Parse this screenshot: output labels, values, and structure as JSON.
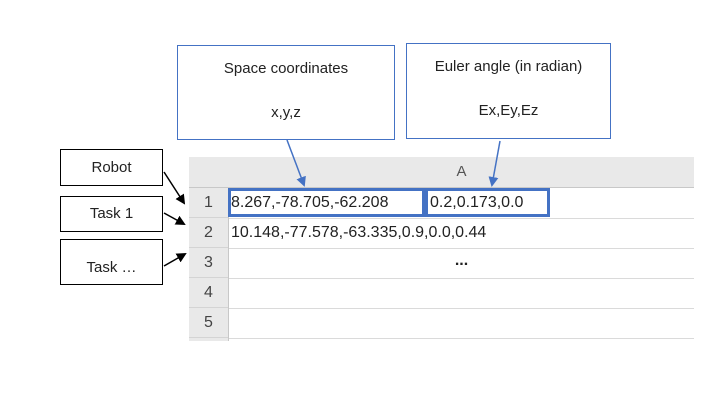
{
  "callouts": {
    "space": {
      "title": "Space coordinates",
      "vars": "x,y,z"
    },
    "euler": {
      "title": "Euler angle (in radian)",
      "vars": "Ex,Ey,Ez"
    }
  },
  "labels": {
    "robot": "Robot",
    "task1": "Task 1",
    "task_more": "Task …"
  },
  "sheet": {
    "column_header": "A",
    "row_numbers": [
      "1",
      "2",
      "3",
      "4",
      "5"
    ],
    "rows": [
      {
        "coords": "8.267,-78.705,-62.208",
        "angles": "0.2,0.173,0.0"
      },
      {
        "text": "10.148,-77.578,-63.335,0.9,0.0,0.44"
      },
      {
        "text": "..."
      }
    ]
  },
  "colors": {
    "highlight": "#4472c4",
    "header_bg": "#e9e9e9"
  }
}
